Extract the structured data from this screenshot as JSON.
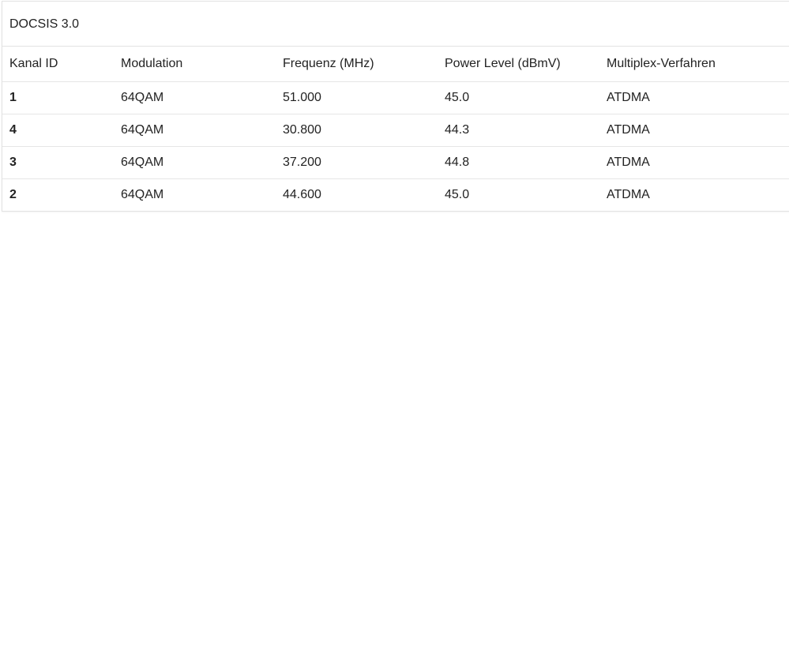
{
  "panel": {
    "title": "DOCSIS 3.0"
  },
  "table": {
    "headers": [
      "Kanal ID",
      "Modulation",
      "Frequenz (MHz)",
      "Power Level (dBmV)",
      "Multiplex-Verfahren"
    ],
    "rows": [
      [
        "1",
        "64QAM",
        "51.000",
        "45.0",
        "ATDMA"
      ],
      [
        "4",
        "64QAM",
        "30.800",
        "44.3",
        "ATDMA"
      ],
      [
        "3",
        "64QAM",
        "37.200",
        "44.8",
        "ATDMA"
      ],
      [
        "2",
        "64QAM",
        "44.600",
        "45.0",
        "ATDMA"
      ]
    ]
  }
}
